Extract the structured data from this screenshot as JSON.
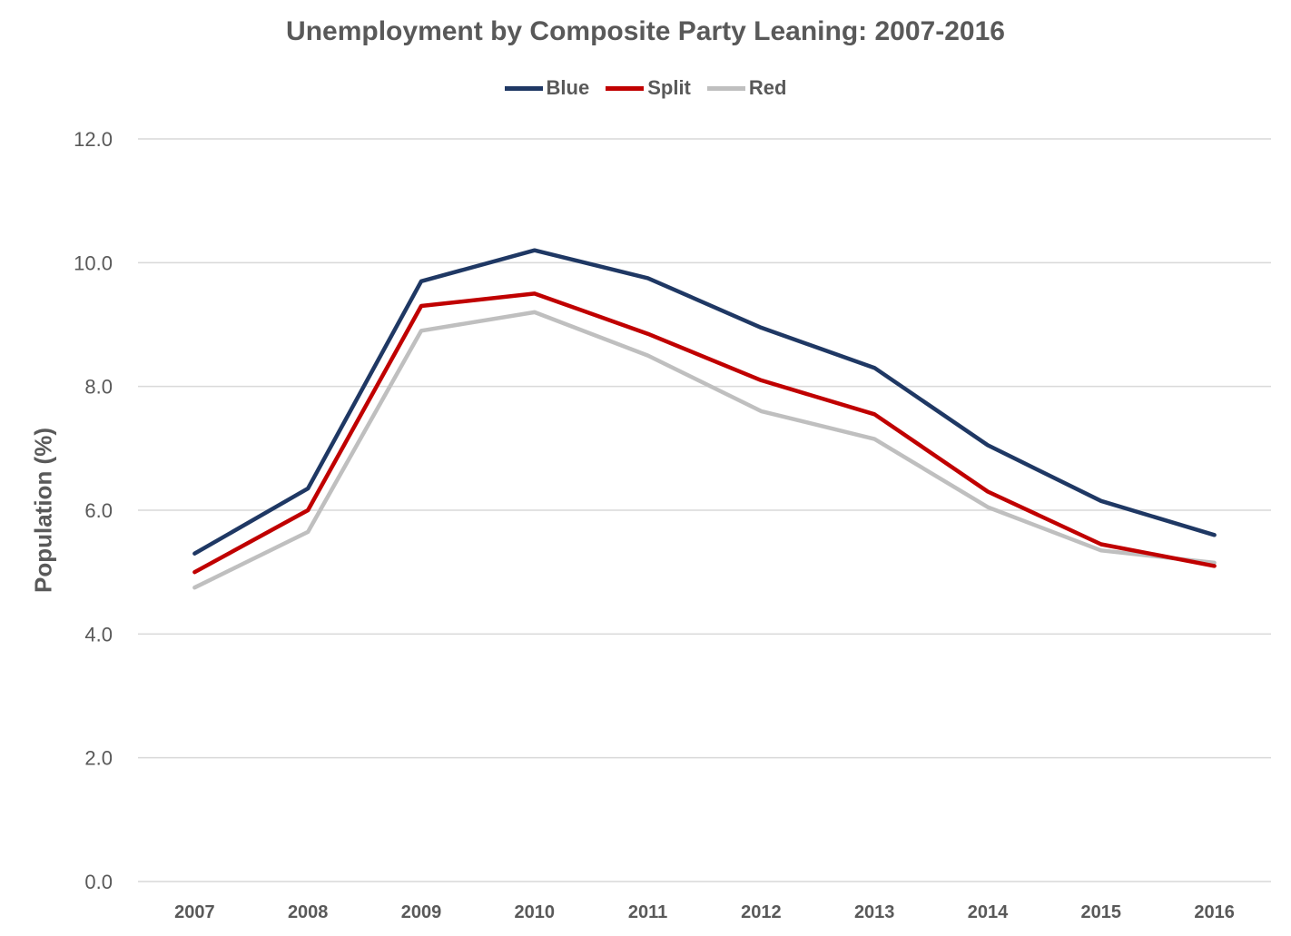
{
  "chart_data": {
    "type": "line",
    "title": "Unemployment by Composite Party Leaning: 2007-2016",
    "xlabel": "",
    "ylabel": "Population (%)",
    "x": [
      "2007",
      "2008",
      "2009",
      "2010",
      "2011",
      "2012",
      "2013",
      "2014",
      "2015",
      "2016"
    ],
    "ylim": [
      0,
      12
    ],
    "yticks": [
      "0.0",
      "2.0",
      "4.0",
      "6.0",
      "8.0",
      "10.0",
      "12.0"
    ],
    "grid": true,
    "legend_position": "top",
    "series": [
      {
        "name": "Blue",
        "color": "#1f3864",
        "values": [
          5.3,
          6.35,
          9.7,
          10.2,
          9.75,
          8.95,
          8.3,
          7.05,
          6.15,
          5.6
        ]
      },
      {
        "name": "Split",
        "color": "#c00000",
        "values": [
          5.0,
          6.0,
          9.3,
          9.5,
          8.85,
          8.1,
          7.55,
          6.3,
          5.45,
          5.1
        ]
      },
      {
        "name": "Red",
        "color": "#bfbfbf",
        "values": [
          4.75,
          5.65,
          8.9,
          9.2,
          8.5,
          7.6,
          7.15,
          6.05,
          5.35,
          5.15
        ]
      }
    ]
  }
}
